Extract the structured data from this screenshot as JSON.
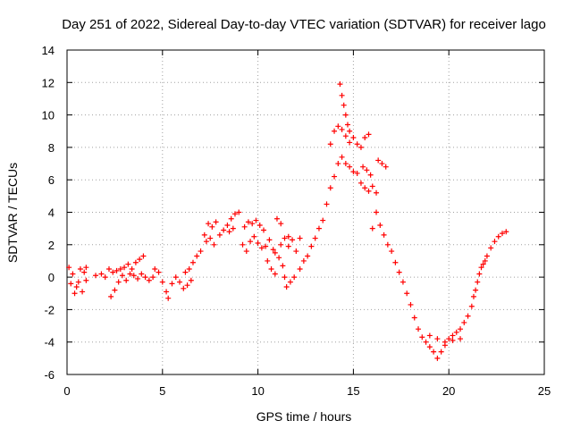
{
  "chart_data": {
    "type": "scatter",
    "title": "Day 251 of 2022, Sidereal Day-to-day VTEC variation (SDTVAR) for receiver lago",
    "xlabel": "GPS time / hours",
    "ylabel": "SDTVAR / TECUs",
    "xlim": [
      0,
      25
    ],
    "ylim": [
      -6,
      14
    ],
    "x_ticks": [
      0,
      5,
      10,
      15,
      20,
      25
    ],
    "y_ticks": [
      -6,
      -4,
      -2,
      0,
      2,
      4,
      6,
      8,
      10,
      12,
      14
    ],
    "grid": true,
    "marker": "+",
    "series": [
      {
        "name": "SDTVAR",
        "color": "#ff0000",
        "points": [
          [
            0.1,
            0.6
          ],
          [
            0.3,
            0.2
          ],
          [
            0.5,
            -0.6
          ],
          [
            0.7,
            0.5
          ],
          [
            0.9,
            0.3
          ],
          [
            1.0,
            0.6
          ],
          [
            0.2,
            -0.4
          ],
          [
            0.4,
            -1.0
          ],
          [
            0.6,
            -0.3
          ],
          [
            0.8,
            -0.9
          ],
          [
            1.0,
            -0.2
          ],
          [
            1.5,
            0.1
          ],
          [
            1.8,
            0.2
          ],
          [
            2.0,
            0.0
          ],
          [
            2.2,
            0.5
          ],
          [
            2.4,
            0.3
          ],
          [
            2.6,
            0.4
          ],
          [
            2.3,
            -1.2
          ],
          [
            2.5,
            -0.8
          ],
          [
            2.7,
            -0.3
          ],
          [
            2.9,
            0.1
          ],
          [
            3.1,
            -0.2
          ],
          [
            3.3,
            0.2
          ],
          [
            2.8,
            0.5
          ],
          [
            3.0,
            0.6
          ],
          [
            3.2,
            0.8
          ],
          [
            3.4,
            0.5
          ],
          [
            3.6,
            0.9
          ],
          [
            3.8,
            1.1
          ],
          [
            4.0,
            1.3
          ],
          [
            3.5,
            0.1
          ],
          [
            3.7,
            -0.1
          ],
          [
            3.9,
            0.2
          ],
          [
            4.1,
            0.0
          ],
          [
            4.3,
            -0.2
          ],
          [
            4.5,
            0.0
          ],
          [
            4.6,
            0.5
          ],
          [
            4.8,
            0.3
          ],
          [
            5.0,
            -0.3
          ],
          [
            5.2,
            -0.9
          ],
          [
            5.3,
            -1.3
          ],
          [
            5.5,
            -0.4
          ],
          [
            5.7,
            0.0
          ],
          [
            5.9,
            -0.3
          ],
          [
            6.1,
            -0.7
          ],
          [
            6.3,
            -0.5
          ],
          [
            6.5,
            -0.2
          ],
          [
            6.2,
            0.3
          ],
          [
            6.4,
            0.5
          ],
          [
            6.6,
            0.9
          ],
          [
            6.8,
            1.3
          ],
          [
            7.0,
            1.6
          ],
          [
            7.2,
            2.6
          ],
          [
            7.4,
            3.3
          ],
          [
            7.6,
            3.1
          ],
          [
            7.8,
            3.4
          ],
          [
            7.3,
            2.2
          ],
          [
            7.5,
            2.4
          ],
          [
            7.7,
            2.0
          ],
          [
            8.0,
            2.6
          ],
          [
            8.2,
            2.9
          ],
          [
            8.4,
            3.2
          ],
          [
            8.6,
            3.6
          ],
          [
            8.8,
            3.9
          ],
          [
            9.0,
            4.0
          ],
          [
            8.5,
            2.8
          ],
          [
            8.7,
            3.0
          ],
          [
            9.3,
            3.1
          ],
          [
            9.5,
            3.4
          ],
          [
            9.7,
            3.3
          ],
          [
            9.9,
            3.5
          ],
          [
            10.1,
            3.2
          ],
          [
            10.3,
            2.9
          ],
          [
            9.2,
            2.0
          ],
          [
            9.4,
            1.6
          ],
          [
            9.6,
            2.2
          ],
          [
            9.8,
            2.5
          ],
          [
            10.0,
            2.1
          ],
          [
            10.2,
            1.8
          ],
          [
            10.4,
            1.9
          ],
          [
            10.6,
            2.3
          ],
          [
            10.8,
            1.7
          ],
          [
            10.9,
            1.5
          ],
          [
            10.5,
            1.0
          ],
          [
            10.7,
            0.5
          ],
          [
            10.9,
            0.2
          ],
          [
            11.1,
            1.2
          ],
          [
            11.3,
            0.7
          ],
          [
            11.4,
            0.0
          ],
          [
            11.5,
            -0.6
          ],
          [
            11.7,
            -0.3
          ],
          [
            11.9,
            0.0
          ],
          [
            11.2,
            2.0
          ],
          [
            11.4,
            2.4
          ],
          [
            11.6,
            1.9
          ],
          [
            11.8,
            2.3
          ],
          [
            12.0,
            1.6
          ],
          [
            12.2,
            2.4
          ],
          [
            11.0,
            3.6
          ],
          [
            11.2,
            3.3
          ],
          [
            11.6,
            2.5
          ],
          [
            12.2,
            0.5
          ],
          [
            12.4,
            1.0
          ],
          [
            12.6,
            1.3
          ],
          [
            12.8,
            1.9
          ],
          [
            13.0,
            2.4
          ],
          [
            13.2,
            3.0
          ],
          [
            13.4,
            3.5
          ],
          [
            13.6,
            4.5
          ],
          [
            13.8,
            5.5
          ],
          [
            14.0,
            6.2
          ],
          [
            14.2,
            7.0
          ],
          [
            14.4,
            7.4
          ],
          [
            13.8,
            8.2
          ],
          [
            14.0,
            9.0
          ],
          [
            14.2,
            9.3
          ],
          [
            14.4,
            9.1
          ],
          [
            14.6,
            8.7
          ],
          [
            14.8,
            8.3
          ],
          [
            14.3,
            11.9
          ],
          [
            14.4,
            11.2
          ],
          [
            14.5,
            10.6
          ],
          [
            14.6,
            10.0
          ],
          [
            14.7,
            9.4
          ],
          [
            14.8,
            9.0
          ],
          [
            15.0,
            8.6
          ],
          [
            15.2,
            8.2
          ],
          [
            15.4,
            8.0
          ],
          [
            15.6,
            8.6
          ],
          [
            15.8,
            8.8
          ],
          [
            14.6,
            7.0
          ],
          [
            14.8,
            6.8
          ],
          [
            15.0,
            6.5
          ],
          [
            15.2,
            6.4
          ],
          [
            15.4,
            5.8
          ],
          [
            15.6,
            5.5
          ],
          [
            15.8,
            5.3
          ],
          [
            16.0,
            5.6
          ],
          [
            16.2,
            5.2
          ],
          [
            15.5,
            6.8
          ],
          [
            15.7,
            6.6
          ],
          [
            15.9,
            6.3
          ],
          [
            16.3,
            7.2
          ],
          [
            16.5,
            7.0
          ],
          [
            16.7,
            6.8
          ],
          [
            16.0,
            3.0
          ],
          [
            16.2,
            4.0
          ],
          [
            16.4,
            3.2
          ],
          [
            16.6,
            2.6
          ],
          [
            16.8,
            2.0
          ],
          [
            17.0,
            1.6
          ],
          [
            17.2,
            0.9
          ],
          [
            17.4,
            0.3
          ],
          [
            17.6,
            -0.3
          ],
          [
            17.8,
            -1.0
          ],
          [
            18.0,
            -1.7
          ],
          [
            18.2,
            -2.5
          ],
          [
            18.4,
            -3.2
          ],
          [
            18.6,
            -3.7
          ],
          [
            18.8,
            -4.0
          ],
          [
            19.0,
            -4.3
          ],
          [
            19.2,
            -4.6
          ],
          [
            19.4,
            -5.0
          ],
          [
            19.6,
            -4.6
          ],
          [
            19.8,
            -4.0
          ],
          [
            20.0,
            -3.8
          ],
          [
            20.2,
            -3.6
          ],
          [
            20.4,
            -3.4
          ],
          [
            20.6,
            -3.2
          ],
          [
            20.8,
            -2.8
          ],
          [
            19.0,
            -3.6
          ],
          [
            19.4,
            -3.8
          ],
          [
            19.8,
            -4.2
          ],
          [
            20.2,
            -3.9
          ],
          [
            20.6,
            -3.8
          ],
          [
            21.0,
            -2.4
          ],
          [
            21.2,
            -1.8
          ],
          [
            21.4,
            -0.8
          ],
          [
            21.6,
            0.2
          ],
          [
            21.8,
            0.8
          ],
          [
            22.0,
            1.3
          ],
          [
            22.2,
            1.8
          ],
          [
            22.4,
            2.2
          ],
          [
            22.6,
            2.5
          ],
          [
            22.8,
            2.7
          ],
          [
            23.0,
            2.8
          ],
          [
            21.3,
            -1.2
          ],
          [
            21.5,
            -0.3
          ],
          [
            21.7,
            0.6
          ],
          [
            21.9,
            1.0
          ]
        ]
      }
    ]
  }
}
